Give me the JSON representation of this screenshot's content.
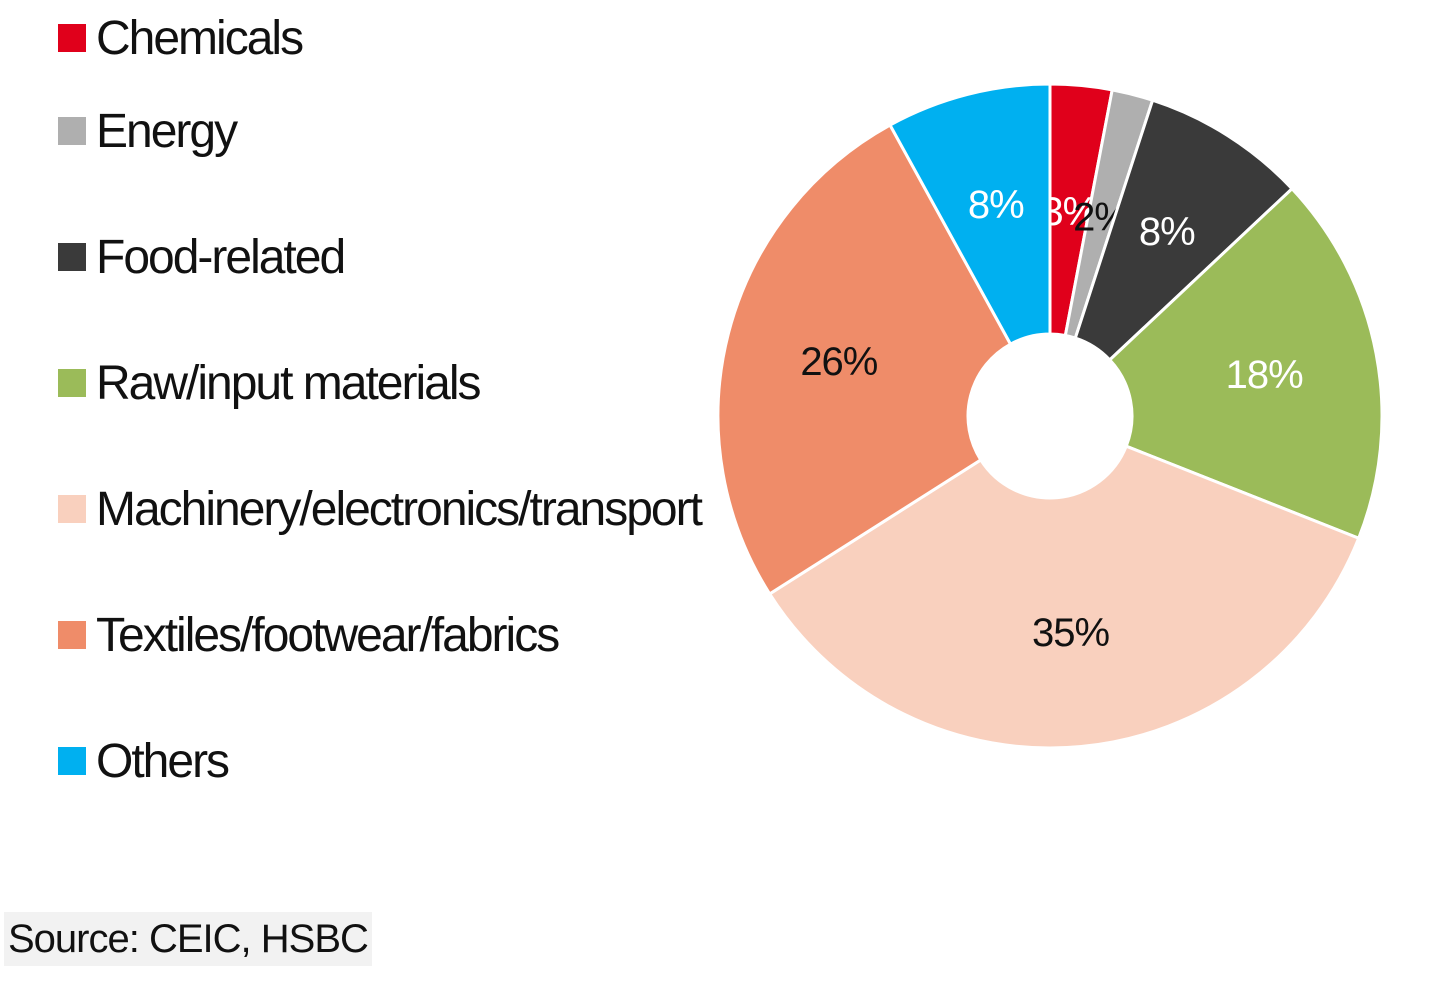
{
  "chart_data": {
    "type": "pie",
    "donut": true,
    "legend_placement": "left",
    "categories": [
      "Chemicals",
      "Energy",
      "Food-related",
      "Raw/input materials",
      "Machinery/electronics/transport",
      "Textiles/footwear/fabrics",
      "Others"
    ],
    "values": [
      3,
      2,
      8,
      18,
      35,
      26,
      8
    ],
    "data_labels": [
      "3%",
      "2%",
      "8%",
      "18%",
      "35%",
      "26%",
      "8%"
    ],
    "colors": [
      "#E0001B",
      "#AFAFAF",
      "#3A3A3A",
      "#9BBB59",
      "#F9D0BE",
      "#EF8C69",
      "#00B0F0"
    ],
    "label_colors": [
      "#ffffff",
      "#111111",
      "#ffffff",
      "#ffffff",
      "#111111",
      "#111111",
      "#ffffff"
    ]
  },
  "source": "Source: CEIC, HSBC"
}
